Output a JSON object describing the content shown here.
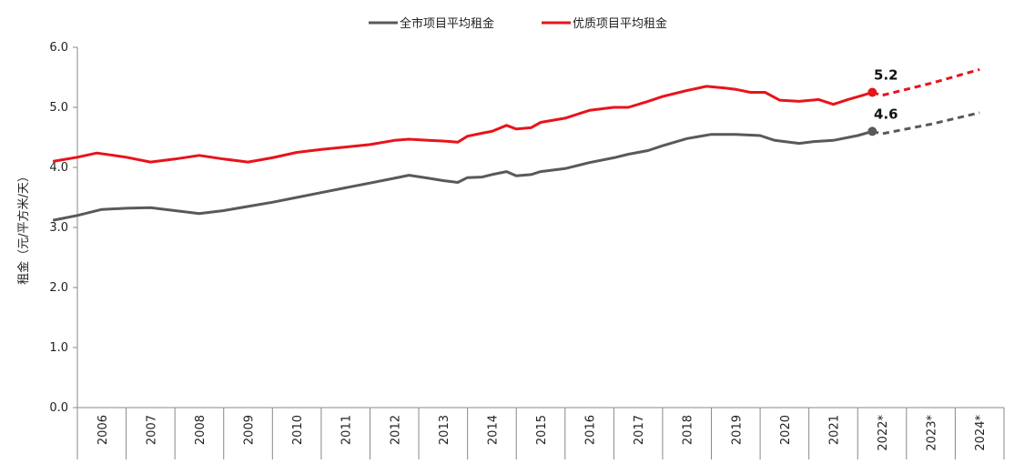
{
  "chart_data": {
    "type": "line",
    "title": "",
    "xlabel": "",
    "ylabel": "租金（元/平方米/天）",
    "ylim": [
      0,
      6
    ],
    "yticks": [
      "0.0",
      "1.0",
      "2.0",
      "3.0",
      "4.0",
      "5.0",
      "6.0"
    ],
    "categories": [
      "2006",
      "2007",
      "2008",
      "2009",
      "2010",
      "2011",
      "2012",
      "2013",
      "2014",
      "2015",
      "2016",
      "2017",
      "2018",
      "2019",
      "2020",
      "2021",
      "2022*",
      "2023*",
      "2024*"
    ],
    "grid": false,
    "legend_position": "top-center",
    "series": [
      {
        "name": "全市项目平均租金",
        "color": "#595959",
        "end_label": "4.6",
        "points": [
          [
            2005.0,
            3.12
          ],
          [
            2005.5,
            3.2
          ],
          [
            2006.0,
            3.3
          ],
          [
            2006.5,
            3.32
          ],
          [
            2007.0,
            3.33
          ],
          [
            2007.5,
            3.28
          ],
          [
            2008.0,
            3.23
          ],
          [
            2008.5,
            3.28
          ],
          [
            2009.0,
            3.35
          ],
          [
            2009.5,
            3.42
          ],
          [
            2010.0,
            3.5
          ],
          [
            2010.5,
            3.58
          ],
          [
            2011.0,
            3.66
          ],
          [
            2011.5,
            3.74
          ],
          [
            2012.0,
            3.82
          ],
          [
            2012.3,
            3.87
          ],
          [
            2012.7,
            3.82
          ],
          [
            2013.0,
            3.78
          ],
          [
            2013.3,
            3.75
          ],
          [
            2013.5,
            3.83
          ],
          [
            2013.8,
            3.84
          ],
          [
            2014.0,
            3.88
          ],
          [
            2014.3,
            3.93
          ],
          [
            2014.5,
            3.86
          ],
          [
            2014.8,
            3.88
          ],
          [
            2015.0,
            3.93
          ],
          [
            2015.5,
            3.98
          ],
          [
            2016.0,
            4.08
          ],
          [
            2016.5,
            4.16
          ],
          [
            2016.8,
            4.22
          ],
          [
            2017.2,
            4.28
          ],
          [
            2017.5,
            4.36
          ],
          [
            2018.0,
            4.48
          ],
          [
            2018.5,
            4.55
          ],
          [
            2019.0,
            4.55
          ],
          [
            2019.5,
            4.53
          ],
          [
            2019.8,
            4.45
          ],
          [
            2020.3,
            4.4
          ],
          [
            2020.6,
            4.43
          ],
          [
            2021.0,
            4.45
          ],
          [
            2021.5,
            4.53
          ],
          [
            2021.8,
            4.6
          ]
        ],
        "forecast": [
          [
            2021.8,
            4.6
          ],
          [
            2022.0,
            4.56
          ],
          [
            2023.0,
            4.72
          ],
          [
            2024.0,
            4.91
          ]
        ]
      },
      {
        "name": "优质项目平均租金",
        "color": "#e8131b",
        "end_label": "5.2",
        "points": [
          [
            2005.0,
            4.1
          ],
          [
            2005.5,
            4.17
          ],
          [
            2005.9,
            4.24
          ],
          [
            2006.5,
            4.17
          ],
          [
            2007.0,
            4.09
          ],
          [
            2007.5,
            4.14
          ],
          [
            2008.0,
            4.2
          ],
          [
            2008.5,
            4.14
          ],
          [
            2009.0,
            4.09
          ],
          [
            2009.5,
            4.16
          ],
          [
            2010.0,
            4.25
          ],
          [
            2010.5,
            4.3
          ],
          [
            2011.0,
            4.34
          ],
          [
            2011.5,
            4.38
          ],
          [
            2012.0,
            4.45
          ],
          [
            2012.3,
            4.47
          ],
          [
            2012.7,
            4.45
          ],
          [
            2013.0,
            4.44
          ],
          [
            2013.3,
            4.42
          ],
          [
            2013.5,
            4.52
          ],
          [
            2013.8,
            4.57
          ],
          [
            2014.0,
            4.6
          ],
          [
            2014.3,
            4.7
          ],
          [
            2014.5,
            4.64
          ],
          [
            2014.8,
            4.66
          ],
          [
            2015.0,
            4.75
          ],
          [
            2015.5,
            4.82
          ],
          [
            2016.0,
            4.95
          ],
          [
            2016.5,
            5.0
          ],
          [
            2016.8,
            5.0
          ],
          [
            2017.2,
            5.1
          ],
          [
            2017.5,
            5.18
          ],
          [
            2018.0,
            5.28
          ],
          [
            2018.4,
            5.35
          ],
          [
            2018.8,
            5.32
          ],
          [
            2019.0,
            5.3
          ],
          [
            2019.3,
            5.25
          ],
          [
            2019.6,
            5.25
          ],
          [
            2019.9,
            5.12
          ],
          [
            2020.3,
            5.1
          ],
          [
            2020.7,
            5.13
          ],
          [
            2021.0,
            5.05
          ],
          [
            2021.3,
            5.13
          ],
          [
            2021.6,
            5.2
          ],
          [
            2021.8,
            5.25
          ]
        ],
        "forecast": [
          [
            2021.8,
            5.25
          ],
          [
            2022.0,
            5.2
          ],
          [
            2023.0,
            5.4
          ],
          [
            2024.0,
            5.63
          ]
        ]
      }
    ]
  }
}
